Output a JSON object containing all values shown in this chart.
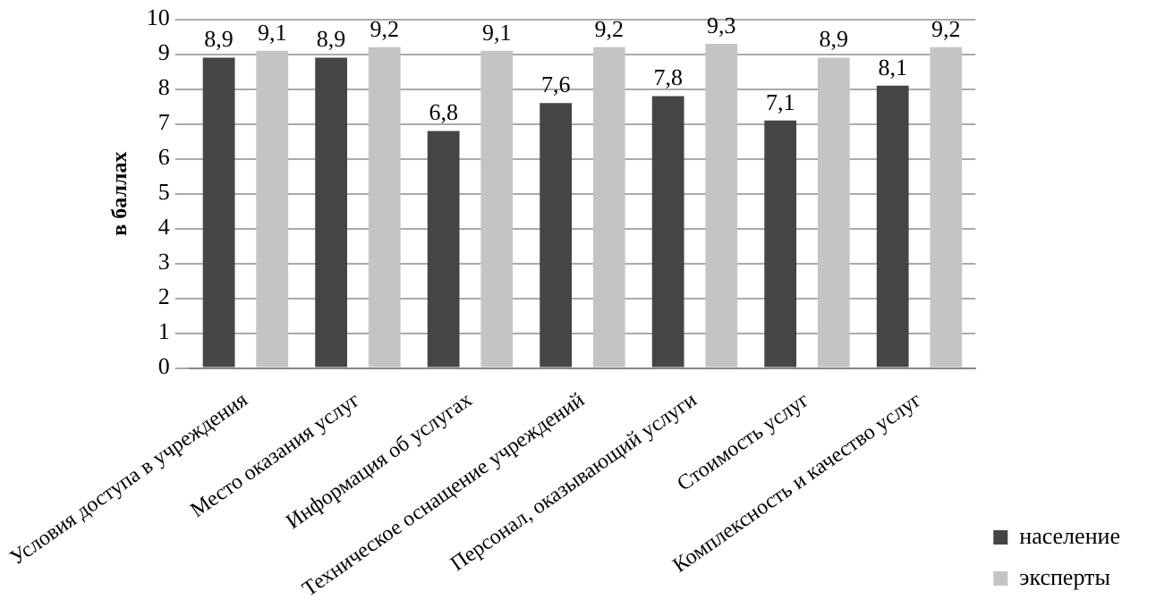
{
  "chart_data": {
    "type": "bar",
    "ylabel": "в баллах",
    "categories": [
      "Условия доступа в учреждения",
      "Место оказания услуг",
      "Информация об услугах",
      "Техническое оснащение учреждений",
      "Персонал, оказывающий услуги",
      "Стоимость услуг",
      "Комплексность и качество услуг"
    ],
    "series": [
      {
        "name": "население",
        "color": "#454545",
        "values": [
          8.9,
          8.9,
          6.8,
          7.6,
          7.8,
          7.1,
          8.1
        ],
        "value_labels": [
          "8,9",
          "8,9",
          "6,8",
          "7,6",
          "7,8",
          "7,1",
          "8,1"
        ]
      },
      {
        "name": "эксперты",
        "color": "#c4c4c4",
        "values": [
          9.1,
          9.2,
          9.1,
          9.2,
          9.3,
          8.9,
          9.2
        ],
        "value_labels": [
          "9,1",
          "9,2",
          "9,1",
          "9,2",
          "9,3",
          "8,9",
          "9,2"
        ]
      }
    ],
    "ylim": [
      0,
      10
    ],
    "yticks": [
      0,
      1,
      2,
      3,
      4,
      5,
      6,
      7,
      8,
      9,
      10
    ],
    "grid": "y",
    "legend": "right"
  }
}
